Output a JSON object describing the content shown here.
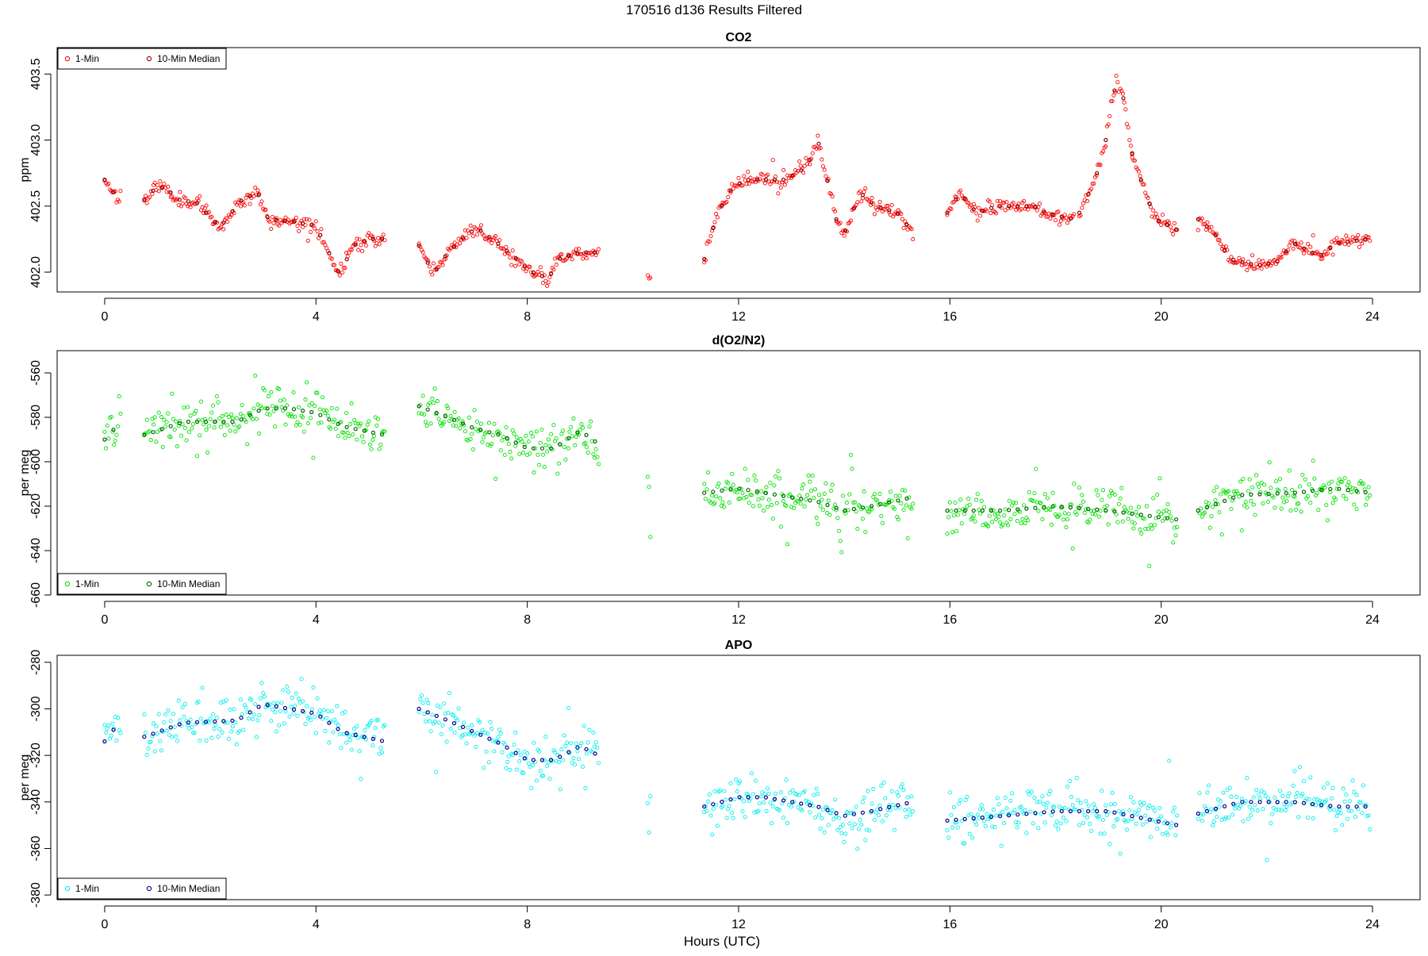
{
  "figure_title": "170516   d136   Results Filtered",
  "xlabel": "Hours (UTC)",
  "colors": {
    "co2_1min": "#ff0000",
    "co2_median": "#8b0000",
    "o2_1min": "#00e000",
    "o2_median": "#006400",
    "apo_1min": "#00eeee",
    "apo_median": "#00008b"
  },
  "chart_data": [
    {
      "type": "scatter",
      "title": "CO2",
      "ylabel": "ppm",
      "xlabel": "",
      "xlim": [
        -0.9,
        24.9
      ],
      "ylim": [
        401.85,
        403.7
      ],
      "xticks": [
        0,
        4,
        8,
        12,
        16,
        20,
        24
      ],
      "yticks": [
        402.0,
        402.5,
        403.0,
        403.5
      ],
      "ytick_labels": [
        "402.0",
        "402.5",
        "403.0",
        "403.5"
      ],
      "legend": {
        "placement": "top-left",
        "entries": [
          "1-Min",
          "10-Min Median"
        ]
      },
      "color_1min": "#ff0000",
      "color_median": "#8b0000",
      "series": [
        {
          "name": "1-Min",
          "seed": 11,
          "noise": 0.025,
          "segments": [
            [
              0.0,
              0.3
            ],
            [
              0.75,
              5.3
            ],
            [
              5.95,
              9.35
            ],
            [
              10.28,
              10.34
            ],
            [
              11.35,
              15.3
            ],
            [
              15.95,
              18.35
            ],
            [
              18.45,
              19.45
            ],
            [
              19.45,
              20.3
            ],
            [
              20.7,
              23.95
            ]
          ],
          "anchors": [
            [
              0.0,
              402.7
            ],
            [
              0.15,
              402.62
            ],
            [
              0.25,
              402.55
            ],
            [
              0.3,
              402.6
            ],
            [
              0.75,
              402.55
            ],
            [
              1.0,
              402.65
            ],
            [
              1.2,
              402.62
            ],
            [
              1.4,
              402.55
            ],
            [
              1.8,
              402.52
            ],
            [
              2.0,
              402.4
            ],
            [
              2.2,
              402.35
            ],
            [
              2.4,
              402.45
            ],
            [
              2.6,
              402.55
            ],
            [
              2.9,
              402.6
            ],
            [
              3.1,
              402.4
            ],
            [
              3.6,
              402.38
            ],
            [
              4.0,
              402.35
            ],
            [
              4.3,
              402.1
            ],
            [
              4.45,
              401.98
            ],
            [
              4.7,
              402.2
            ],
            [
              5.0,
              402.25
            ],
            [
              5.3,
              402.25
            ],
            [
              5.95,
              402.2
            ],
            [
              6.1,
              402.08
            ],
            [
              6.25,
              402.0
            ],
            [
              6.5,
              402.15
            ],
            [
              6.9,
              402.3
            ],
            [
              7.1,
              402.32
            ],
            [
              7.5,
              402.2
            ],
            [
              7.8,
              402.1
            ],
            [
              8.1,
              402.0
            ],
            [
              8.4,
              401.95
            ],
            [
              8.6,
              402.1
            ],
            [
              9.0,
              402.15
            ],
            [
              9.35,
              402.15
            ],
            [
              10.28,
              401.97
            ],
            [
              10.34,
              401.95
            ],
            [
              11.35,
              402.1
            ],
            [
              11.6,
              402.45
            ],
            [
              11.9,
              402.65
            ],
            [
              12.2,
              402.7
            ],
            [
              12.6,
              402.7
            ],
            [
              12.9,
              402.7
            ],
            [
              13.3,
              402.8
            ],
            [
              13.5,
              403.0
            ],
            [
              13.65,
              402.75
            ],
            [
              13.85,
              402.4
            ],
            [
              14.0,
              402.3
            ],
            [
              14.3,
              402.6
            ],
            [
              14.6,
              402.5
            ],
            [
              15.0,
              402.45
            ],
            [
              15.3,
              402.3
            ],
            [
              15.95,
              402.45
            ],
            [
              16.2,
              402.6
            ],
            [
              16.5,
              402.45
            ],
            [
              16.9,
              402.5
            ],
            [
              17.3,
              402.5
            ],
            [
              17.6,
              402.5
            ],
            [
              17.8,
              402.45
            ],
            [
              18.35,
              402.4
            ],
            [
              18.45,
              402.45
            ],
            [
              18.75,
              402.7
            ],
            [
              18.95,
              403.0
            ],
            [
              19.15,
              403.45
            ],
            [
              19.3,
              403.3
            ],
            [
              19.45,
              402.9
            ],
            [
              19.7,
              402.6
            ],
            [
              19.9,
              402.4
            ],
            [
              20.3,
              402.32
            ],
            [
              20.7,
              402.4
            ],
            [
              21.0,
              402.3
            ],
            [
              21.3,
              402.1
            ],
            [
              21.8,
              402.05
            ],
            [
              22.2,
              402.08
            ],
            [
              22.5,
              402.22
            ],
            [
              23.0,
              402.12
            ],
            [
              23.3,
              402.22
            ],
            [
              23.95,
              402.25
            ]
          ]
        },
        {
          "name": "10-Min Median",
          "seed": 12,
          "noise": 0.0,
          "every": 10,
          "segments": [
            [
              0.0,
              0.3
            ],
            [
              0.75,
              5.3
            ],
            [
              5.95,
              9.35
            ],
            [
              11.35,
              15.3
            ],
            [
              15.95,
              18.35
            ],
            [
              18.45,
              19.45
            ],
            [
              19.45,
              20.3
            ],
            [
              20.7,
              23.95
            ]
          ],
          "anchors": "same"
        }
      ]
    },
    {
      "type": "scatter",
      "title": "d(O2/N2)",
      "ylabel": "per meg",
      "xlabel": "",
      "xlim": [
        -0.9,
        24.9
      ],
      "ylim": [
        -660,
        -550
      ],
      "xticks": [
        0,
        4,
        8,
        12,
        16,
        20,
        24
      ],
      "yticks": [
        -660,
        -640,
        -620,
        -600,
        -580,
        -560
      ],
      "ytick_labels": [
        "-660",
        "-640",
        "-620",
        "-600",
        "-580",
        "-560"
      ],
      "legend": {
        "placement": "bottom-left",
        "entries": [
          "1-Min",
          "10-Min Median"
        ]
      },
      "color_1min": "#00e000",
      "color_median": "#006400",
      "series": [
        {
          "name": "1-Min",
          "seed": 21,
          "noise": 5,
          "segments": [
            [
              0.0,
              0.3
            ],
            [
              0.75,
              5.3
            ],
            [
              5.95,
              9.35
            ],
            [
              10.28,
              10.34
            ],
            [
              11.35,
              15.3
            ],
            [
              15.95,
              20.3
            ],
            [
              20.7,
              23.95
            ]
          ],
          "anchors": [
            [
              0.0,
              -590
            ],
            [
              0.3,
              -582
            ],
            [
              0.75,
              -588
            ],
            [
              1.5,
              -582
            ],
            [
              2.5,
              -582
            ],
            [
              3.0,
              -576
            ],
            [
              3.5,
              -576
            ],
            [
              4.0,
              -578
            ],
            [
              4.5,
              -584
            ],
            [
              5.3,
              -588
            ],
            [
              5.95,
              -575
            ],
            [
              6.5,
              -580
            ],
            [
              7.0,
              -585
            ],
            [
              7.5,
              -588
            ],
            [
              8.0,
              -594
            ],
            [
              8.5,
              -594
            ],
            [
              9.0,
              -586
            ],
            [
              9.35,
              -592
            ],
            [
              10.3,
              -621
            ],
            [
              11.35,
              -614
            ],
            [
              12.0,
              -612
            ],
            [
              12.5,
              -614
            ],
            [
              13.0,
              -616
            ],
            [
              13.5,
              -618
            ],
            [
              14.0,
              -622
            ],
            [
              14.5,
              -620
            ],
            [
              15.3,
              -616
            ],
            [
              15.95,
              -622
            ],
            [
              17.0,
              -622
            ],
            [
              18.0,
              -620
            ],
            [
              19.0,
              -622
            ],
            [
              20.3,
              -626
            ],
            [
              20.7,
              -622
            ],
            [
              21.5,
              -615
            ],
            [
              22.5,
              -614
            ],
            [
              23.3,
              -612
            ],
            [
              23.95,
              -614
            ]
          ]
        },
        {
          "name": "10-Min Median",
          "seed": 22,
          "noise": 0,
          "every": 10,
          "segments": [
            [
              0.0,
              0.3
            ],
            [
              0.75,
              5.3
            ],
            [
              5.95,
              9.35
            ],
            [
              11.35,
              15.3
            ],
            [
              15.95,
              20.3
            ],
            [
              20.7,
              23.95
            ]
          ],
          "anchors": "same"
        }
      ]
    },
    {
      "type": "scatter",
      "title": "APO",
      "ylabel": "per meg",
      "xlabel": "Hours (UTC)",
      "xlim": [
        -0.9,
        24.9
      ],
      "ylim": [
        -382,
        -277
      ],
      "xticks": [
        0,
        4,
        8,
        12,
        16,
        20,
        24
      ],
      "yticks": [
        -380,
        -360,
        -340,
        -320,
        -300,
        -280
      ],
      "ytick_labels": [
        "-380",
        "-360",
        "-340",
        "-320",
        "-300",
        "-280"
      ],
      "legend": {
        "placement": "bottom-left",
        "entries": [
          "1-Min",
          "10-Min Median"
        ]
      },
      "color_1min": "#00eeee",
      "color_median": "#00008b",
      "series": [
        {
          "name": "1-Min",
          "seed": 31,
          "noise": 5,
          "segments": [
            [
              0.0,
              0.3
            ],
            [
              0.75,
              5.3
            ],
            [
              5.95,
              9.35
            ],
            [
              10.28,
              10.34
            ],
            [
              11.35,
              15.3
            ],
            [
              15.95,
              20.3
            ],
            [
              20.7,
              23.95
            ]
          ],
          "anchors": [
            [
              0.0,
              -314
            ],
            [
              0.3,
              -305
            ],
            [
              0.75,
              -312
            ],
            [
              1.5,
              -306
            ],
            [
              2.5,
              -305
            ],
            [
              3.0,
              -298
            ],
            [
              3.5,
              -300
            ],
            [
              4.0,
              -302
            ],
            [
              4.5,
              -310
            ],
            [
              5.3,
              -314
            ],
            [
              5.95,
              -300
            ],
            [
              6.5,
              -305
            ],
            [
              7.0,
              -310
            ],
            [
              7.5,
              -315
            ],
            [
              8.0,
              -322
            ],
            [
              8.5,
              -322
            ],
            [
              9.0,
              -316
            ],
            [
              9.35,
              -320
            ],
            [
              10.3,
              -349
            ],
            [
              11.35,
              -342
            ],
            [
              12.0,
              -338
            ],
            [
              12.5,
              -338
            ],
            [
              13.0,
              -340
            ],
            [
              13.5,
              -342
            ],
            [
              14.0,
              -346
            ],
            [
              14.5,
              -344
            ],
            [
              15.3,
              -340
            ],
            [
              15.95,
              -348
            ],
            [
              17.0,
              -346
            ],
            [
              18.0,
              -344
            ],
            [
              19.0,
              -344
            ],
            [
              20.3,
              -350
            ],
            [
              20.7,
              -345
            ],
            [
              21.5,
              -340
            ],
            [
              22.5,
              -340
            ],
            [
              23.3,
              -342
            ],
            [
              23.95,
              -342
            ]
          ]
        },
        {
          "name": "10-Min Median",
          "seed": 32,
          "noise": 0,
          "every": 10,
          "segments": [
            [
              0.0,
              0.3
            ],
            [
              0.75,
              5.3
            ],
            [
              5.95,
              9.35
            ],
            [
              11.35,
              15.3
            ],
            [
              15.95,
              20.3
            ],
            [
              20.7,
              23.95
            ]
          ],
          "anchors": "same"
        }
      ]
    }
  ]
}
